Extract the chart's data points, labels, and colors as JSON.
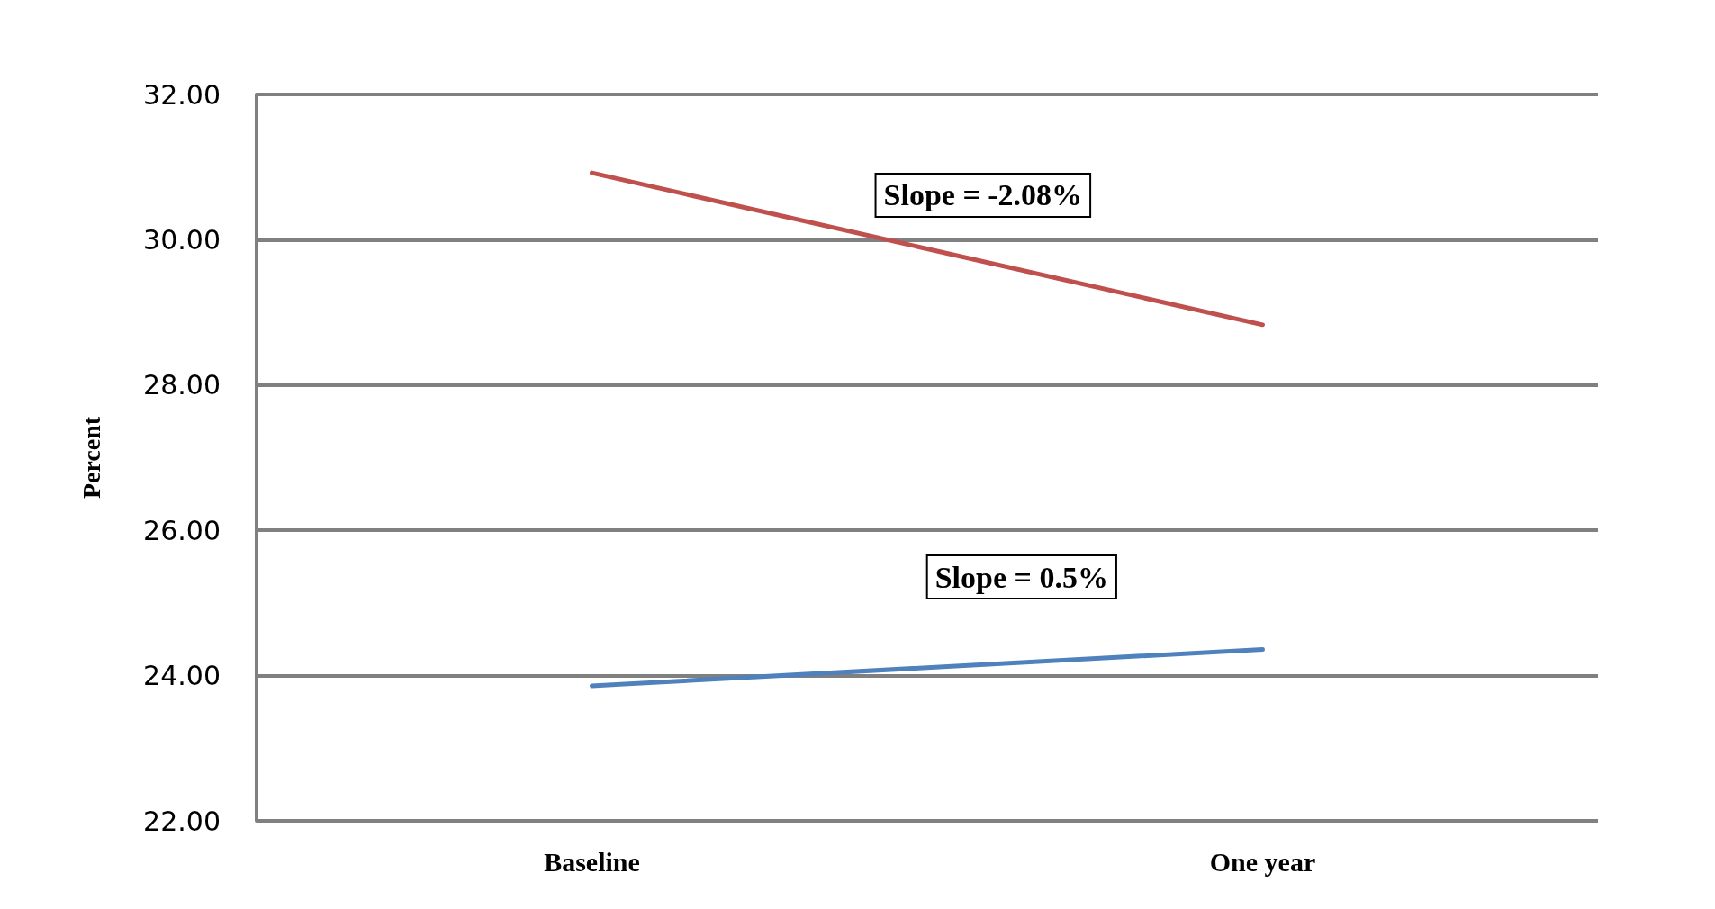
{
  "chart_data": {
    "type": "line",
    "ylabel": "Percent",
    "categories": [
      "Baseline",
      "One year"
    ],
    "series": [
      {
        "color": "#c0504d",
        "values": [
          30.92,
          28.83
        ]
      },
      {
        "color": "#4f81bd",
        "values": [
          23.86,
          24.36
        ]
      }
    ],
    "ylim": [
      22,
      32
    ],
    "yticks": [
      {
        "value": 22,
        "label": "22.00"
      },
      {
        "value": 24,
        "label": "24.00"
      },
      {
        "value": 26,
        "label": "26.00"
      },
      {
        "value": 28,
        "label": "28.00"
      },
      {
        "value": 30,
        "label": "30.00"
      },
      {
        "value": 32,
        "label": "32.00"
      }
    ],
    "grid": "y",
    "marker": "none",
    "annotations": [
      "Slope = -2.08%",
      "Slope = 0.5%"
    ]
  }
}
